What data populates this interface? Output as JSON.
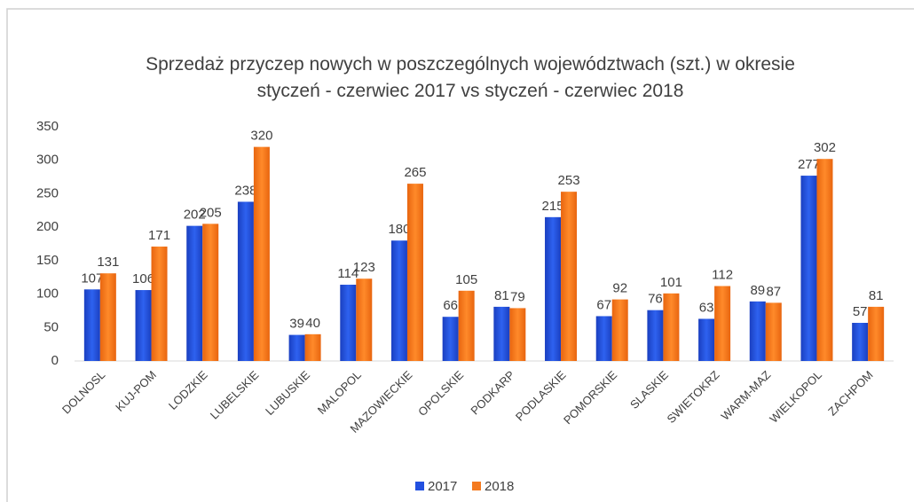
{
  "chart_data": {
    "type": "bar",
    "title": "Sprzedaż przyczep nowych w poszczególnych województwach (szt.) w okresie styczeń - czerwiec 2017 vs styczeń - czerwiec 2018",
    "categories": [
      "DOLNOSL",
      "KUJ-POM",
      "LODZKIE",
      "LUBELSKIE",
      "LUBUSKIE",
      "MALOPOL",
      "MAZOWIECKIE",
      "OPOLSKIE",
      "PODKARP",
      "PODLASKIE",
      "POMORSKIE",
      "SLASKIE",
      "SWIETOKRZ",
      "WARM-MAZ",
      "WIELKOPOL",
      "ZACHPOM"
    ],
    "series": [
      {
        "name": "2017",
        "color": "#2250e0",
        "values": [
          107,
          106,
          202,
          238,
          39,
          114,
          180,
          66,
          81,
          215,
          67,
          76,
          63,
          89,
          277,
          57
        ]
      },
      {
        "name": "2018",
        "color": "#f47a1f",
        "values": [
          131,
          171,
          205,
          320,
          40,
          123,
          265,
          105,
          79,
          253,
          92,
          101,
          112,
          87,
          302,
          81
        ]
      }
    ],
    "ylim": [
      0,
      350
    ],
    "yticks": [
      0,
      50,
      100,
      150,
      200,
      250,
      300,
      350
    ],
    "grid": false,
    "legend": "bottom"
  }
}
